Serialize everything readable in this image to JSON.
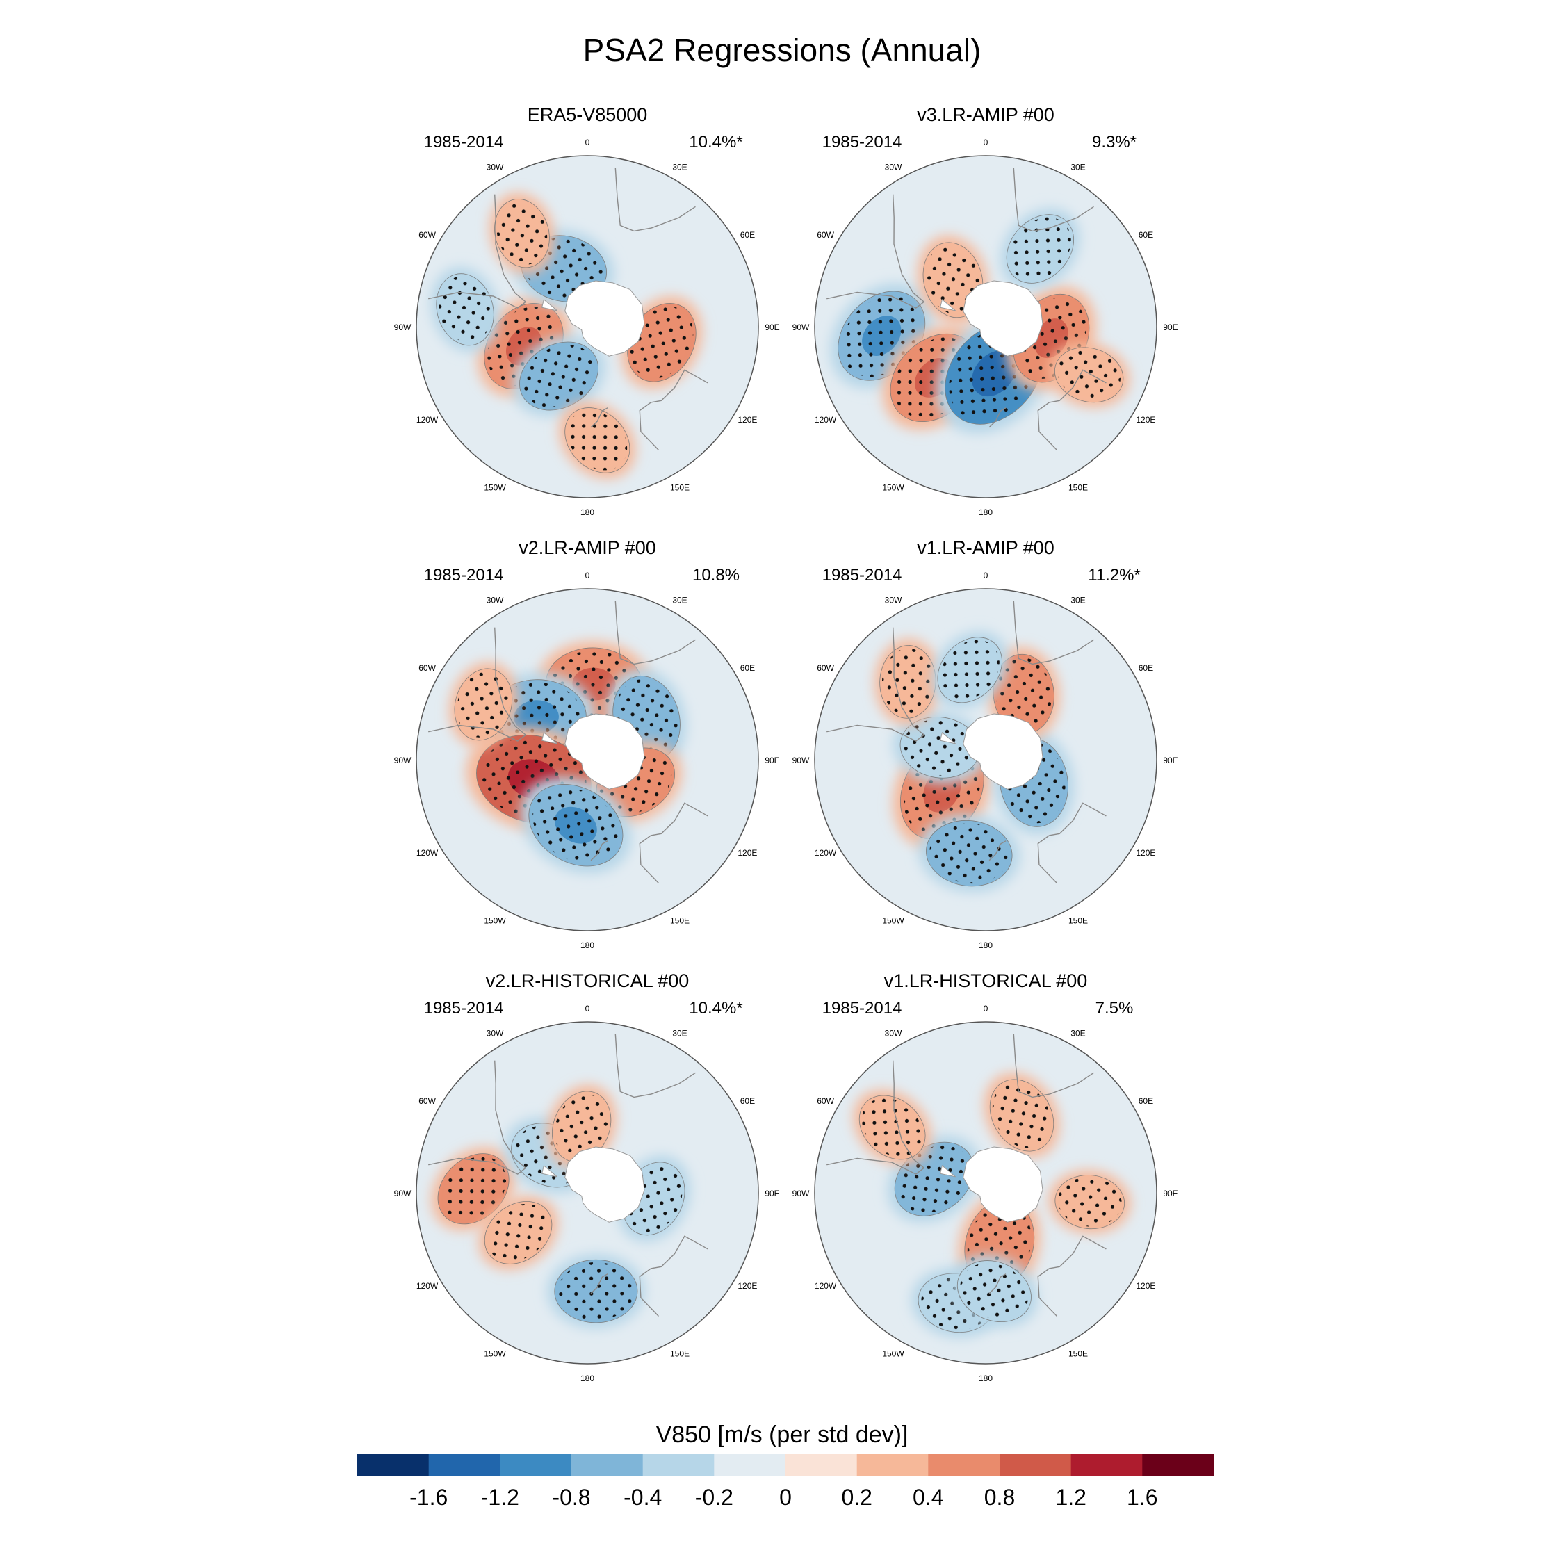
{
  "title": "PSA2 Regressions (Annual)",
  "chart_data": {
    "type": "heatmap",
    "projection": "south-polar-stereographic",
    "variable": "V850",
    "colorbar": {
      "label": "V850 [m/s (per std dev)]",
      "tick_labels": [
        "-1.6",
        "-1.2",
        "-0.8",
        "-0.4",
        "-0.2",
        "0",
        "0.2",
        "0.4",
        "0.8",
        "1.2",
        "1.6"
      ],
      "colors": [
        "#08306b",
        "#2166ac",
        "#3c8ac2",
        "#7fb5d8",
        "#b6d6e8",
        "#e3ecf2",
        "#fae3d7",
        "#f6b899",
        "#e98b6c",
        "#d05a49",
        "#ae1c2e",
        "#6b0019"
      ]
    },
    "longitude_labels": [
      "0",
      "30E",
      "60E",
      "90E",
      "120E",
      "150E",
      "180",
      "150W",
      "120W",
      "90W",
      "60W",
      "30W"
    ],
    "panels": [
      {
        "name": "ERA5-V85000",
        "period": "1985-2014",
        "variance": "10.4%*",
        "features": [
          {
            "lon": -107,
            "lat": -55,
            "value": 0.6,
            "hatched": true
          },
          {
            "lon": -22,
            "lat": -57,
            "value": -0.5,
            "hatched": true
          },
          {
            "lon": -150,
            "lat": -60,
            "value": -0.45,
            "hatched": true
          },
          {
            "lon": 102,
            "lat": -50,
            "value": 0.45,
            "hatched": true
          },
          {
            "lon": -35,
            "lat": -30,
            "value": 0.25,
            "hatched": true
          },
          {
            "lon": -82,
            "lat": -25,
            "value": -0.3,
            "hatched": true
          },
          {
            "lon": 175,
            "lat": -30,
            "value": 0.3,
            "hatched": true
          }
        ]
      },
      {
        "name": "v3.LR-AMIP  #00",
        "period": "1985-2014",
        "variance": "9.3%*",
        "features": [
          {
            "lon": -95,
            "lat": -35,
            "value": -0.7,
            "hatched": true
          },
          {
            "lon": -135,
            "lat": -52,
            "value": 0.7,
            "hatched": true
          },
          {
            "lon": 170,
            "lat": -65,
            "value": -0.9,
            "hatched": true
          },
          {
            "lon": 100,
            "lat": -55,
            "value": 0.6,
            "hatched": true
          },
          {
            "lon": -35,
            "lat": -60,
            "value": 0.35,
            "hatched": true
          },
          {
            "lon": 35,
            "lat": -40,
            "value": -0.35,
            "hatched": true
          },
          {
            "lon": 115,
            "lat": -30,
            "value": 0.25,
            "hatched": true
          }
        ]
      },
      {
        "name": "v2.LR-AMIP  #00",
        "period": "1985-2014",
        "variance": "10.8%",
        "features": [
          {
            "lon": 5,
            "lat": -50,
            "value": 0.65,
            "hatched": true
          },
          {
            "lon": -50,
            "lat": -55,
            "value": -0.7,
            "hatched": true
          },
          {
            "lon": 55,
            "lat": -52,
            "value": -0.5,
            "hatched": true
          },
          {
            "lon": -110,
            "lat": -60,
            "value": 0.95,
            "hatched": true
          },
          {
            "lon": 115,
            "lat": -62,
            "value": 0.45,
            "hatched": true
          },
          {
            "lon": -170,
            "lat": -55,
            "value": -0.7,
            "hatched": true
          },
          {
            "lon": -62,
            "lat": -28,
            "value": 0.3,
            "hatched": true
          }
        ]
      },
      {
        "name": "v1.LR-AMIP  #00",
        "period": "1985-2014",
        "variance": "11.2%*",
        "features": [
          {
            "lon": -125,
            "lat": -62,
            "value": 0.75,
            "hatched": true
          },
          {
            "lon": 115,
            "lat": -62,
            "value": -0.55,
            "hatched": true
          },
          {
            "lon": -75,
            "lat": -65,
            "value": -0.4,
            "hatched": true
          },
          {
            "lon": 30,
            "lat": -50,
            "value": 0.4,
            "hatched": true
          },
          {
            "lon": -170,
            "lat": -40,
            "value": -0.5,
            "hatched": true
          },
          {
            "lon": -45,
            "lat": -32,
            "value": 0.3,
            "hatched": true
          },
          {
            "lon": -10,
            "lat": -42,
            "value": -0.3,
            "hatched": true
          }
        ]
      },
      {
        "name": "v2.LR-HISTORICAL  #00",
        "period": "1985-2014",
        "variance": "10.4%*",
        "features": [
          {
            "lon": -88,
            "lat": -30,
            "value": 0.4,
            "hatched": true
          },
          {
            "lon": -120,
            "lat": -48,
            "value": 0.3,
            "hatched": true
          },
          {
            "lon": -45,
            "lat": -62,
            "value": -0.4,
            "hatched": true
          },
          {
            "lon": 95,
            "lat": -55,
            "value": -0.35,
            "hatched": true
          },
          {
            "lon": 175,
            "lat": -38,
            "value": -0.45,
            "hatched": true
          },
          {
            "lon": -5,
            "lat": -55,
            "value": 0.3,
            "hatched": true
          }
        ]
      },
      {
        "name": "v1.LR-HISTORICAL  #00",
        "period": "1985-2014",
        "variance": "7.5%",
        "features": [
          {
            "lon": -75,
            "lat": -62,
            "value": -0.5,
            "hatched": true
          },
          {
            "lon": 165,
            "lat": -62,
            "value": 0.55,
            "hatched": true
          },
          {
            "lon": 25,
            "lat": -45,
            "value": 0.35,
            "hatched": true
          },
          {
            "lon": -55,
            "lat": -30,
            "value": 0.3,
            "hatched": true
          },
          {
            "lon": -165,
            "lat": -30,
            "value": -0.35,
            "hatched": true
          },
          {
            "lon": 175,
            "lat": -38,
            "value": -0.35,
            "hatched": true
          },
          {
            "lon": 95,
            "lat": -35,
            "value": 0.25,
            "hatched": true
          }
        ]
      }
    ]
  }
}
